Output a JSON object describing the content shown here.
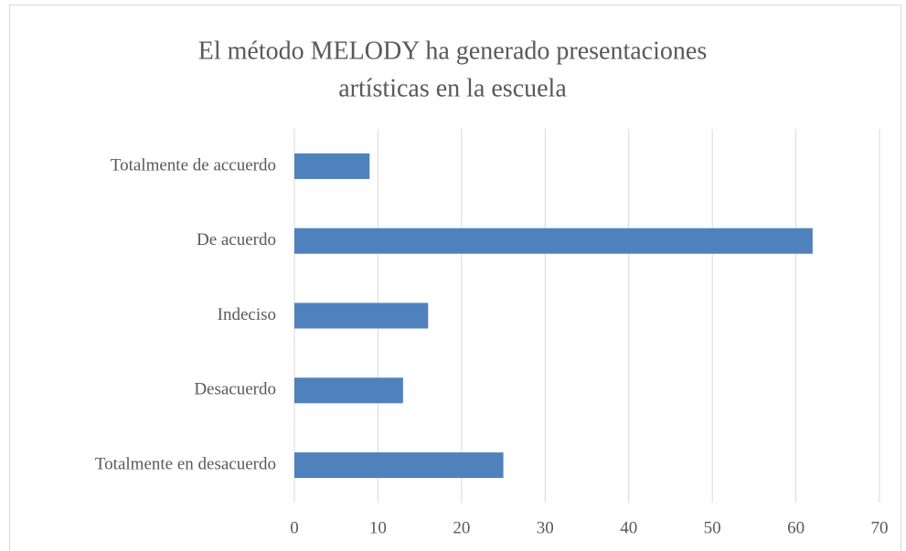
{
  "chart_data": {
    "type": "bar",
    "orientation": "horizontal",
    "title": [
      "El método MELODY ha generado presentaciones",
      "artísticas en la escuela"
    ],
    "categories": [
      "Totalmente de accuerdo",
      "De acuerdo",
      "Indeciso",
      "Desacuerdo",
      "Totalmente en desacuerdo"
    ],
    "values": [
      9,
      62,
      16,
      13,
      25
    ],
    "color": "#4f81bd",
    "xlim": [
      0,
      70
    ],
    "xticks": [
      0,
      10,
      20,
      30,
      40,
      50,
      60,
      70
    ],
    "grid": true
  }
}
